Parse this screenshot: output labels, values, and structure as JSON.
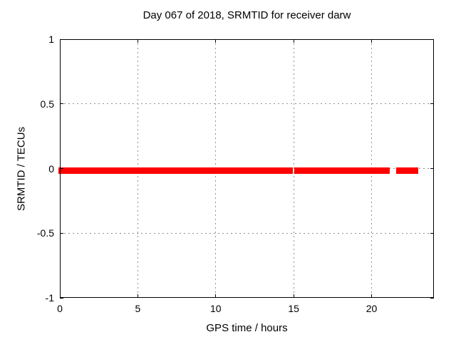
{
  "chart_data": {
    "type": "scatter",
    "title": "Day 067 of 2018, SRMTID for receiver darw",
    "xlabel": "GPS time / hours",
    "ylabel": "SRMTID / TECUs",
    "xlim": [
      0,
      24
    ],
    "ylim": [
      -1,
      1
    ],
    "xticks": [
      0,
      5,
      10,
      15,
      20
    ],
    "xtick_labels": [
      "0",
      "5",
      "10",
      "15",
      "20"
    ],
    "yticks": [
      -1,
      -0.5,
      0,
      0.5,
      1
    ],
    "ytick_labels": [
      "-1",
      "-0.5",
      "0",
      "0.5",
      "1"
    ],
    "grid": true,
    "legend": "none",
    "series": [
      {
        "name": "SRMTID",
        "marker": "point",
        "color": "#ff0000",
        "y_center": 0,
        "y_range_tecus": [
          -0.03,
          0.01
        ],
        "x_segments_hours": [
          [
            0.0,
            14.87
          ],
          [
            15.13,
            15.5
          ],
          [
            15.68,
            20.53
          ],
          [
            20.62,
            20.85
          ],
          [
            20.98,
            21.07
          ],
          [
            21.68,
            22.9
          ]
        ]
      }
    ],
    "colors": {
      "marker": "#ff0000",
      "grid": "#909090",
      "axis": "#000000",
      "background": "#ffffff",
      "text": "#000000"
    }
  }
}
